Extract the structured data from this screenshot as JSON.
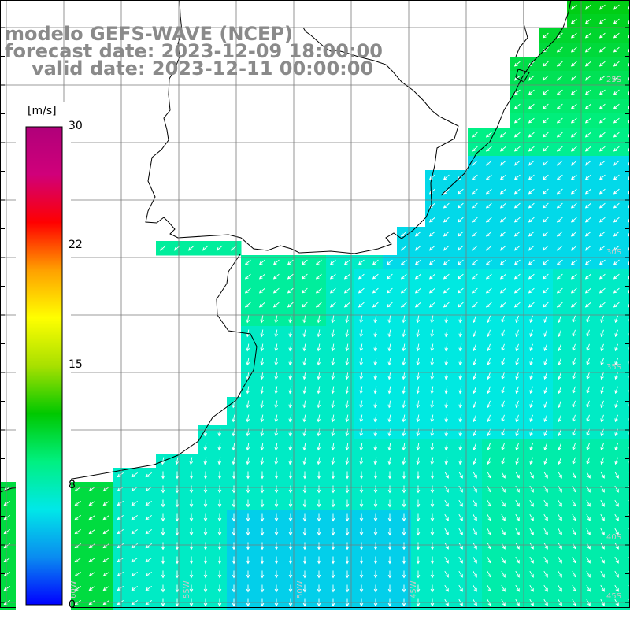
{
  "header": {
    "line1": "modelo GEFS-WAVE (NCEP)",
    "line2": "forecast date: 2023-12-09 18:00:00",
    "line3": "valid date: 2023-12-11 00:00:00"
  },
  "colorbar": {
    "unit": "[m/s]",
    "ticks": [
      "30",
      "22",
      "15",
      "8",
      "0"
    ],
    "tick_values": [
      30,
      22,
      15,
      8,
      0
    ],
    "range": [
      0,
      30
    ],
    "colors": [
      "#0000ff",
      "#0a8cf0",
      "#00e8e8",
      "#00f080",
      "#00c800",
      "#a8e000",
      "#ffff00",
      "#ffa000",
      "#ff0000",
      "#d0007a",
      "#b0007a"
    ]
  },
  "lat_labels": [
    "25S",
    "30S",
    "35S",
    "40S",
    "45S"
  ],
  "lon_labels": [
    "60W",
    "55W",
    "50W",
    "45W"
  ],
  "colors": {
    "land": "#ffffff",
    "grid": "#7a7a7a",
    "arrow": "#ffffff",
    "title": "#8a8a8a"
  }
}
